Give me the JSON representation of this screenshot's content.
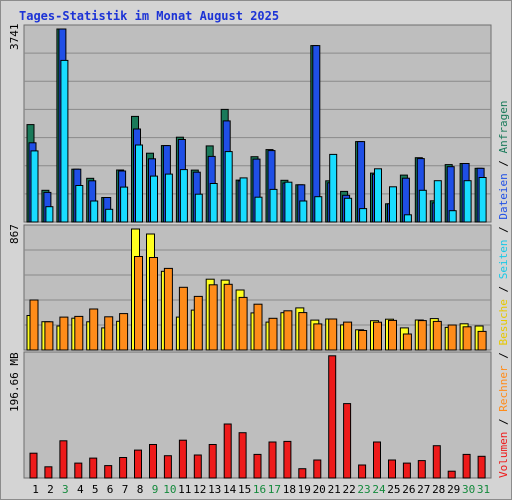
{
  "chart_data": {
    "title": "Tages-Statistik im Monat August 2025",
    "type": "bar",
    "days": [
      "1",
      "2",
      "3",
      "4",
      "5",
      "6",
      "7",
      "8",
      "9",
      "10",
      "11",
      "12",
      "13",
      "14",
      "15",
      "16",
      "17",
      "18",
      "19",
      "20",
      "21",
      "22",
      "23",
      "24",
      "25",
      "26",
      "27",
      "28",
      "29",
      "30",
      "31"
    ],
    "weekend_days": [
      "3",
      "9",
      "10",
      "16",
      "17",
      "23",
      "24",
      "30",
      "31"
    ],
    "side_legend": {
      "volumen": "Volumen",
      "sep1": " / ",
      "rechner": "Rechner",
      "sep2": " / ",
      "besuche": "Besuche",
      "sep3": " / ",
      "seiten": "Seiten",
      "sep4": " / ",
      "dateien": "Dateien",
      "sep5": " / ",
      "anfragen": "Anfragen"
    },
    "colors": {
      "anfragen": "#1a7a5a",
      "dateien": "#1f4fe6",
      "seiten": "#18dcff",
      "besuche": "#ffff20",
      "rechner": "#ff8c1a",
      "volumen": "#ee1a1a",
      "panel_bg": "#bebebe",
      "frame_bg": "#d4d4d4",
      "title": "#1c33d6",
      "weekend_label": "#148a3c"
    },
    "panels": [
      {
        "id": "top",
        "max_label": "3741",
        "ymax": 3741,
        "series": [
          {
            "name": "Anfragen",
            "values": [
              1888,
              614,
              3741,
              1024,
              848,
              474,
              1008,
              2046,
              1333,
              1480,
              1643,
              1006,
              1475,
              2183,
              812,
              1265,
              1404,
              808,
              722,
              3419,
              798,
              593,
              1559,
              948,
              352,
              910,
              1247,
              411,
              1113,
              1134,
              1040
            ]
          },
          {
            "name": "Dateien",
            "values": [
              1536,
              574,
              3741,
              1024,
              798,
              474,
              988,
              1803,
              1225,
              1480,
              1600,
              966,
              1272,
              1959,
              797,
              1219,
              1384,
              755,
              722,
              3419,
              760,
              517,
              1559,
              925,
              352,
              849,
              1229,
              371,
              1072,
              1134,
              1040
            ]
          },
          {
            "name": "Seiten",
            "values": [
              1378,
              296,
              3132,
              708,
              408,
              246,
              676,
              1493,
              889,
              928,
              1016,
              538,
              746,
              1364,
              854,
              480,
              631,
              771,
              408,
              490,
              1310,
              460,
              260,
              1032,
              683,
              140,
              615,
              801,
              219,
              801,
              862
            ]
          }
        ]
      },
      {
        "id": "middle",
        "max_label": "867",
        "ymax": 867,
        "series": [
          {
            "name": "Besuche",
            "values": [
              247,
              203,
              172,
              228,
              202,
              158,
              206,
              867,
              831,
              564,
              236,
              286,
              507,
              501,
              430,
              266,
              200,
              267,
              302,
              214,
              222,
              180,
              145,
              210,
              221,
              158,
              215,
              225,
              162,
              188,
              172
            ]
          },
          {
            "name": "Rechner",
            "values": [
              358,
              202,
              236,
              241,
              294,
              238,
              261,
              670,
              663,
              585,
              449,
              384,
              467,
              471,
              377,
              328,
              227,
              281,
              268,
              187,
              222,
              200,
              140,
              199,
              212,
              115,
              211,
              205,
              179,
              166,
              133
            ]
          }
        ]
      },
      {
        "id": "bottom",
        "max_label": "196.66 MB",
        "ymax": 196.66,
        "series": [
          {
            "name": "Volumen",
            "values": [
              40,
              18,
              60,
              24,
              32,
              20,
              33,
              45,
              54,
              36,
              61,
              37,
              54,
              87,
              73,
              38,
              58,
              59,
              15,
              29,
              197,
              120,
              21,
              58,
              29,
              24,
              28,
              52,
              11,
              38,
              35
            ]
          }
        ]
      }
    ]
  }
}
